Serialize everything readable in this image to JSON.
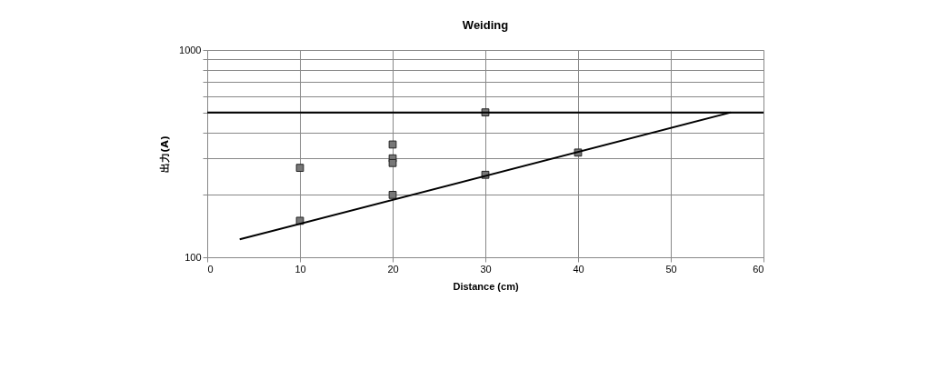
{
  "chart_data": {
    "type": "scatter",
    "title": "Weiding",
    "xlabel": "Distance (cm)",
    "ylabel": "出力(A)",
    "series": [
      {
        "color": "#777777",
        "x": [
          10,
          10,
          20,
          20,
          20,
          20,
          30,
          30,
          40
        ],
        "values": [
          270,
          150,
          350,
          300,
          285,
          200,
          500,
          250,
          320
        ],
        "marker": "square"
      },
      {
        "type": "line",
        "color": "#000000",
        "x": [
          3.5,
          56.5
        ],
        "values": [
          122,
          500
        ],
        "line_style": "solid"
      }
    ],
    "ref_lines": [
      {
        "axis": "y",
        "value": 500,
        "color": "#000000",
        "line_style": "solid"
      }
    ],
    "log": "y",
    "xlim": [
      0,
      60
    ],
    "xticks": [
      0,
      10,
      20,
      30,
      40,
      50,
      60
    ],
    "ylim": [
      100,
      1000
    ],
    "yticks": [
      100,
      {
        "value": 200,
        "label": null
      },
      {
        "value": 300,
        "label": null
      },
      {
        "value": 400,
        "label": null
      },
      {
        "value": 500,
        "label": null
      },
      {
        "value": 600,
        "label": null
      },
      {
        "value": 700,
        "label": null
      },
      {
        "value": 800,
        "label": null
      },
      {
        "value": 900,
        "label": null
      },
      1000
    ],
    "grid": true
  }
}
